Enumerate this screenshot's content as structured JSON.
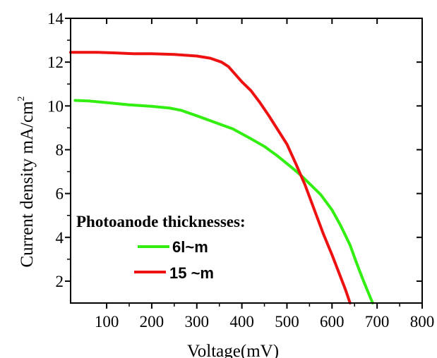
{
  "chart_data": {
    "type": "line",
    "xlabel": "Voltage(mV)",
    "ylabel": "Current density  mA/cm",
    "ylabel_superscript": "2",
    "xlim": [
      20,
      800
    ],
    "ylim": [
      1,
      14
    ],
    "xticks": [
      100,
      200,
      300,
      400,
      500,
      600,
      700,
      800
    ],
    "yticks": [
      2,
      4,
      6,
      8,
      10,
      12,
      14
    ],
    "grid": false,
    "legend_title": "Photoanode thicknesses:",
    "legend_placement": "bottom-left",
    "series": [
      {
        "name": "6l~m",
        "color": "#33ee11",
        "points": [
          [
            30,
            10.25
          ],
          [
            60,
            10.23
          ],
          [
            100,
            10.15
          ],
          [
            150,
            10.05
          ],
          [
            200,
            9.98
          ],
          [
            240,
            9.9
          ],
          [
            265,
            9.8
          ],
          [
            300,
            9.55
          ],
          [
            340,
            9.25
          ],
          [
            380,
            8.95
          ],
          [
            420,
            8.5
          ],
          [
            450,
            8.15
          ],
          [
            480,
            7.7
          ],
          [
            510,
            7.2
          ],
          [
            530,
            6.85
          ],
          [
            550,
            6.45
          ],
          [
            575,
            5.95
          ],
          [
            600,
            5.25
          ],
          [
            620,
            4.5
          ],
          [
            640,
            3.65
          ],
          [
            655,
            2.8
          ],
          [
            670,
            2.0
          ],
          [
            680,
            1.5
          ],
          [
            690,
            1.0
          ]
        ]
      },
      {
        "name": "15 ~m",
        "color": "#ee1111",
        "points": [
          [
            20,
            12.45
          ],
          [
            80,
            12.45
          ],
          [
            120,
            12.42
          ],
          [
            160,
            12.38
          ],
          [
            200,
            12.38
          ],
          [
            250,
            12.35
          ],
          [
            300,
            12.28
          ],
          [
            330,
            12.18
          ],
          [
            355,
            12.0
          ],
          [
            370,
            11.8
          ],
          [
            385,
            11.45
          ],
          [
            400,
            11.1
          ],
          [
            410,
            10.9
          ],
          [
            420,
            10.7
          ],
          [
            440,
            10.15
          ],
          [
            460,
            9.55
          ],
          [
            480,
            8.9
          ],
          [
            500,
            8.25
          ],
          [
            520,
            7.35
          ],
          [
            540,
            6.4
          ],
          [
            560,
            5.3
          ],
          [
            580,
            4.2
          ],
          [
            600,
            3.2
          ],
          [
            615,
            2.4
          ],
          [
            630,
            1.6
          ],
          [
            640,
            1.0
          ]
        ]
      }
    ]
  }
}
